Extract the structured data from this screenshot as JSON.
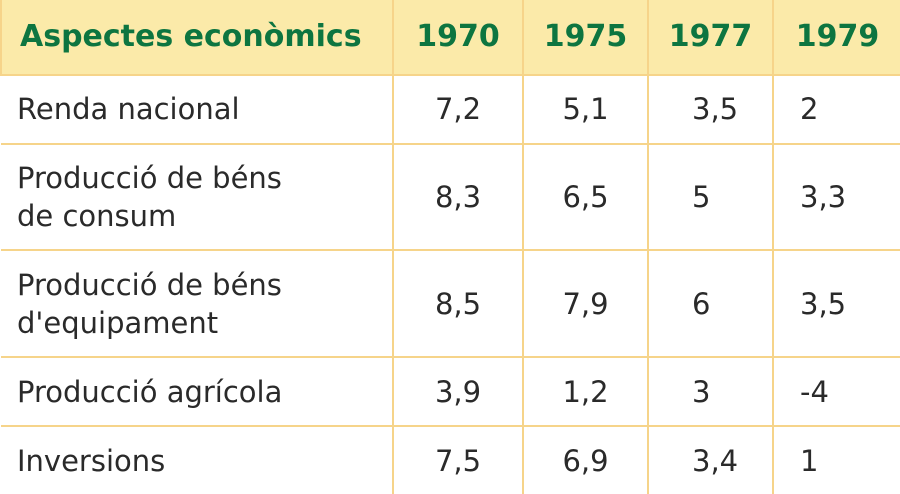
{
  "table": {
    "headers": [
      "Aspectes econòmics",
      "1970",
      "1975",
      "1977",
      "1979"
    ],
    "rows": [
      {
        "label": [
          "Renda nacional"
        ],
        "values": [
          "7,2",
          "5,1",
          "3,5",
          "2"
        ]
      },
      {
        "label": [
          "Producció de béns",
          "de consum"
        ],
        "values": [
          "8,3",
          "6,5",
          "5",
          "3,3"
        ]
      },
      {
        "label": [
          "Producció de béns",
          "d'equipament"
        ],
        "values": [
          "8,5",
          "7,9",
          "6",
          "3,5"
        ]
      },
      {
        "label": [
          "Producció agrícola"
        ],
        "values": [
          "3,9",
          "1,2",
          "3",
          "-4"
        ]
      },
      {
        "label": [
          "Inversions"
        ],
        "values": [
          "7,5",
          "6,9",
          "3,4",
          "1"
        ]
      }
    ]
  },
  "colors": {
    "header_bg": "#fbeaa9",
    "header_text": "#0d7540",
    "border": "#f6d48a",
    "body_text": "#2a2a2a"
  }
}
